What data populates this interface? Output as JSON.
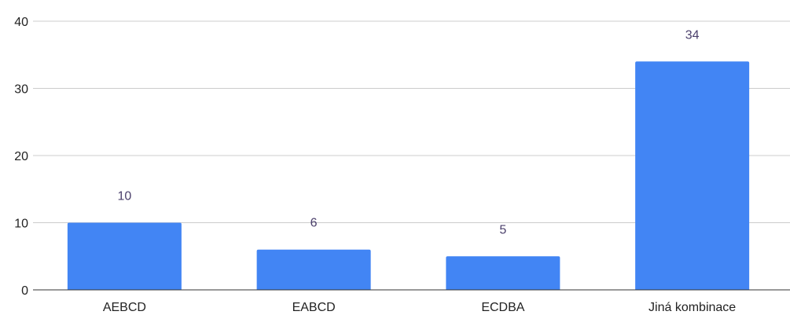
{
  "chart_data": {
    "type": "bar",
    "categories": [
      "AEBCD",
      "EABCD",
      "ECDBA",
      "Jiná kombinace"
    ],
    "values": [
      10,
      6,
      5,
      34
    ],
    "data_labels": [
      "10",
      "6",
      "5",
      "34"
    ],
    "y_ticks": [
      "0",
      "10",
      "20",
      "30",
      "40"
    ],
    "ylim": [
      0,
      40
    ],
    "grid": true,
    "legend": "none",
    "colors": {
      "bar": "#4285f4",
      "grid": "#cccccc",
      "axis": "#333333",
      "data_label": "#4a3f6b",
      "tick_label": "#222222"
    }
  }
}
